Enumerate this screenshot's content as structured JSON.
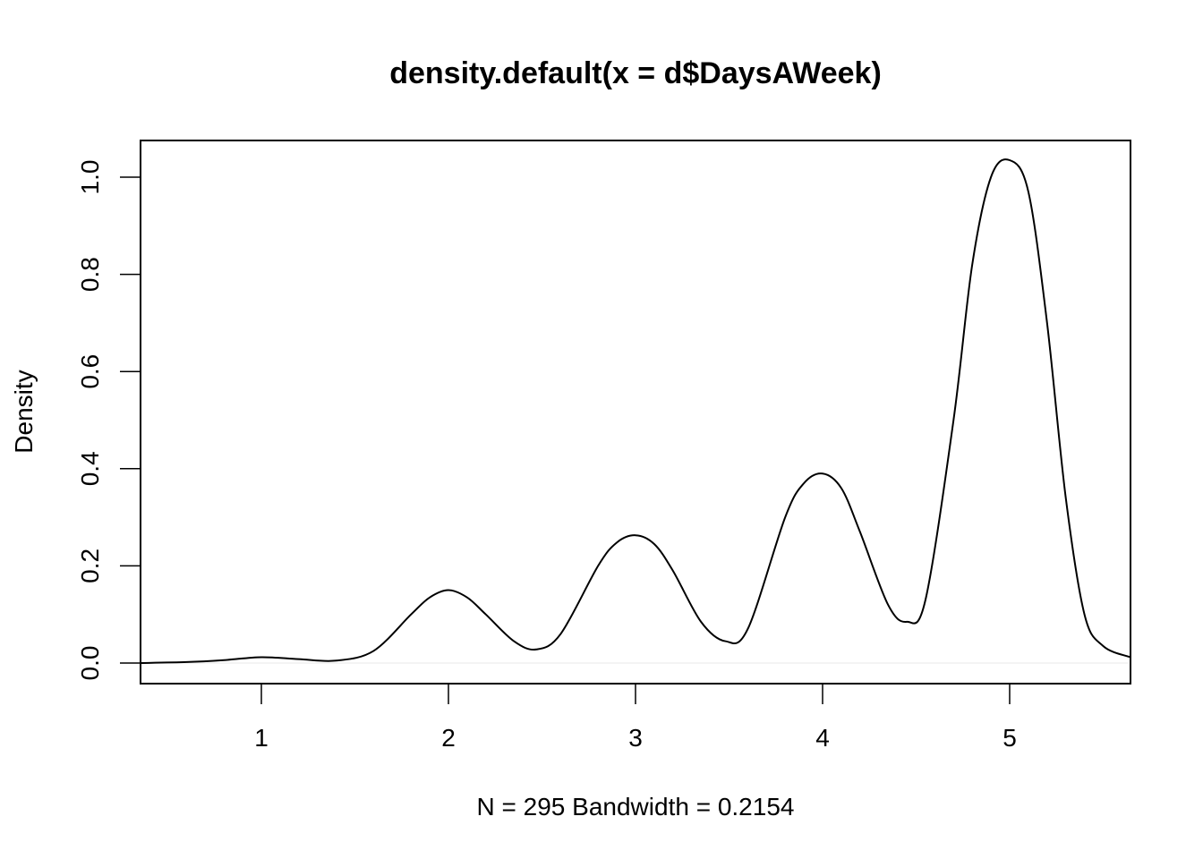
{
  "chart_data": {
    "type": "line",
    "title": "density.default(x = d$DaysAWeek)",
    "xlabel": "N = 295   Bandwidth = 0.2154",
    "ylabel": "Density",
    "xlim": [
      0.354,
      5.646
    ],
    "ylim": [
      0,
      1.035
    ],
    "x_ticks": [
      "1",
      "2",
      "3",
      "4",
      "5"
    ],
    "y_ticks": [
      "0.0",
      "0.2",
      "0.4",
      "0.6",
      "0.8",
      "1.0"
    ],
    "grid": false,
    "legend": "none",
    "series": [
      {
        "name": "",
        "x": [
          0.35,
          0.6,
          0.8,
          1.0,
          1.2,
          1.4,
          1.6,
          1.8,
          1.9,
          2.0,
          2.1,
          2.2,
          2.35,
          2.47,
          2.6,
          2.8,
          2.9,
          3.0,
          3.1,
          3.2,
          3.35,
          3.48,
          3.6,
          3.8,
          3.9,
          4.0,
          4.1,
          4.2,
          4.35,
          4.45,
          4.55,
          4.7,
          4.8,
          4.9,
          5.0,
          5.1,
          5.2,
          5.3,
          5.4,
          5.5,
          5.646
        ],
        "y": [
          0.0,
          0.002,
          0.006,
          0.012,
          0.008,
          0.005,
          0.025,
          0.1,
          0.135,
          0.15,
          0.135,
          0.1,
          0.045,
          0.028,
          0.06,
          0.2,
          0.248,
          0.263,
          0.245,
          0.19,
          0.085,
          0.045,
          0.07,
          0.3,
          0.37,
          0.39,
          0.36,
          0.27,
          0.12,
          0.085,
          0.13,
          0.5,
          0.82,
          1.0,
          1.035,
          0.97,
          0.7,
          0.34,
          0.1,
          0.035,
          0.012
        ]
      }
    ]
  }
}
